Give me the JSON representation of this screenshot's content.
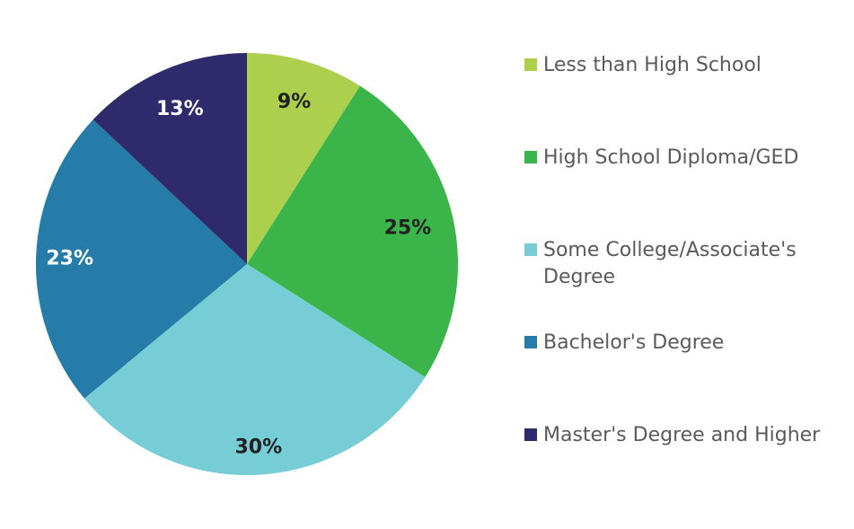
{
  "chart_data": {
    "type": "pie",
    "categories": [
      "Less than High School",
      "High School Diploma/GED",
      "Some College/Associate's Degree",
      "Bachelor's Degree",
      "Master's Degree and Higher"
    ],
    "values": [
      9,
      25,
      30,
      23,
      13
    ],
    "value_labels": [
      "9%",
      "25%",
      "30%",
      "23%",
      "13%"
    ],
    "colors": [
      "#acd04e",
      "#3bb54a",
      "#76cdd5",
      "#257ca8",
      "#2e2a6c"
    ],
    "label_colors": [
      "#222222",
      "#222222",
      "#222222",
      "#ffffff",
      "#ffffff"
    ],
    "legend": {
      "position": "right"
    }
  }
}
